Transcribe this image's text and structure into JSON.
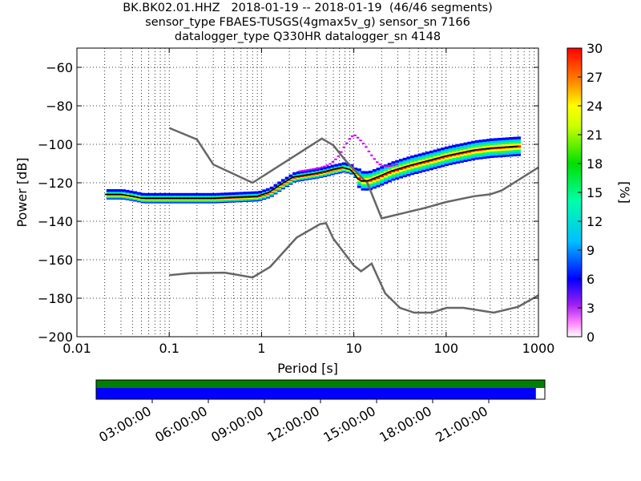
{
  "title_lines": [
    "BK.BK02.01.HHZ   2018-01-19 -- 2018-01-19  (46/46 segments)",
    "sensor_type FBAES-TUSGS(4gmax5v_g) sensor_sn 7166",
    "datalogger_type Q330HR datalogger_sn 4148"
  ],
  "chart_data": {
    "type": "line",
    "xlabel": "Period [s]",
    "ylabel": "Power [dB]",
    "x_scale": "log",
    "xlim": [
      0.01,
      1000
    ],
    "ylim": [
      -200,
      -50
    ],
    "x_ticks": [
      0.01,
      0.1,
      1,
      10,
      100,
      1000
    ],
    "x_tick_labels": [
      "0.01",
      "0.1",
      "1",
      "10",
      "100",
      "1000"
    ],
    "y_ticks": [
      -200,
      -180,
      -160,
      -140,
      -120,
      -100,
      -80,
      -60
    ],
    "y_tick_labels": [
      "−200",
      "−180",
      "−160",
      "−140",
      "−120",
      "−100",
      "−80",
      "−60"
    ],
    "grid": true,
    "series": [
      {
        "color": "#666666",
        "x": [
          0.1,
          0.2,
          0.3,
          0.8,
          4.5,
          6,
          8,
          10,
          12,
          14,
          20,
          40,
          60,
          100,
          200,
          300,
          400,
          1000
        ],
        "y": [
          -91.5,
          -97.5,
          -110.5,
          -120,
          -97,
          -100.5,
          -108,
          -113,
          -117,
          -120,
          -138.5,
          -135,
          -133,
          -130,
          -127,
          -126,
          -124,
          -112
        ]
      },
      {
        "color": "#666666",
        "x": [
          0.1,
          0.17,
          0.4,
          0.8,
          1.24,
          2.4,
          4.3,
          5,
          6,
          10,
          12,
          15.6,
          21.9,
          31.6,
          45,
          70,
          101,
          154,
          328,
          600,
          1000
        ],
        "y": [
          -168,
          -167,
          -166.7,
          -169.2,
          -163.7,
          -148.5,
          -141.5,
          -141,
          -149,
          -163,
          -166,
          -162,
          -177.5,
          -185,
          -187.5,
          -187.5,
          -185,
          -185,
          -187.5,
          -184.5,
          -178.5
        ]
      },
      {
        "name": "mode",
        "color": "#000000",
        "x": [
          0.02,
          0.03,
          0.04,
          0.05,
          0.1,
          0.3,
          0.9,
          1.2,
          1.6,
          2.2,
          3,
          4,
          5,
          6,
          7.5,
          9,
          10,
          11,
          12,
          14,
          18,
          25,
          40,
          70,
          100,
          200,
          300,
          600
        ],
        "y": [
          -126,
          -126,
          -127,
          -128,
          -128,
          -128,
          -127,
          -125,
          -121,
          -117,
          -116,
          -115,
          -114,
          -113,
          -112,
          -113,
          -115,
          -118,
          -119,
          -119,
          -117,
          -114,
          -111,
          -108,
          -106,
          -103,
          -102,
          -101
        ]
      }
    ],
    "colorbar": {
      "label": "[%]",
      "range": [
        0,
        30
      ],
      "ticks": [
        0,
        3,
        6,
        9,
        12,
        15,
        18,
        21,
        24,
        27,
        30
      ]
    },
    "coverage": {
      "time_labels": [
        "03:00:00",
        "06:00:00",
        "09:00:00",
        "12:00:00",
        "15:00:00",
        "18:00:00",
        "21:00:00"
      ],
      "data_fraction": 0.98,
      "data_color": "#0000ff",
      "available_color": "#008000"
    }
  }
}
